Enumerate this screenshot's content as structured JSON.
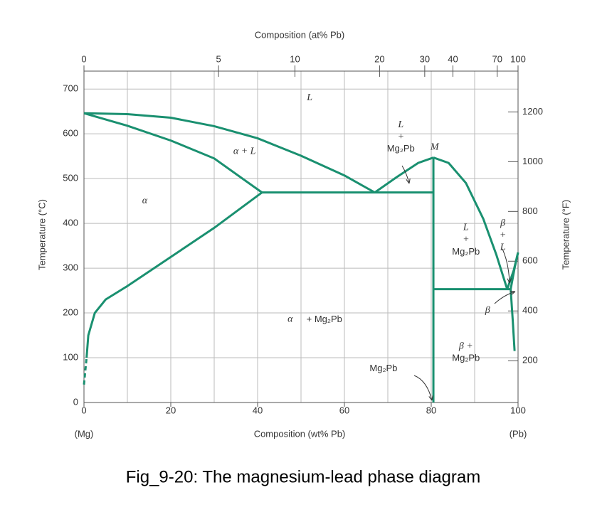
{
  "chart_data": {
    "type": "phase_diagram",
    "caption": "Fig_9-20: The magnesium-lead phase diagram",
    "xlabel": "Composition (wt% Pb)",
    "x2label": "Composition (at% Pb)",
    "ylabel": "Temperature (°C)",
    "y2label": "Temperature (°F)",
    "left_end": "(Mg)",
    "right_end": "(Pb)",
    "xlim": [
      0,
      100
    ],
    "ylim": [
      0,
      740
    ],
    "y2lim": [
      32,
      1364
    ],
    "xticks": [
      0,
      20,
      40,
      60,
      80,
      100
    ],
    "yticks": [
      0,
      100,
      200,
      300,
      400,
      500,
      600,
      700
    ],
    "y2ticks": [
      200,
      400,
      600,
      800,
      1000,
      1200
    ],
    "x2ticks": [
      {
        "value": 0,
        "label": "0"
      },
      {
        "value": 31.0,
        "label": "5"
      },
      {
        "value": 48.6,
        "label": "10"
      },
      {
        "value": 68.1,
        "label": "20"
      },
      {
        "value": 78.5,
        "label": "30"
      },
      {
        "value": 85.0,
        "label": "40"
      },
      {
        "value": 95.2,
        "label": "70"
      },
      {
        "value": 100,
        "label": "100"
      }
    ],
    "grid": true,
    "color": "#1a9070",
    "curves": [
      {
        "x": [
          0,
          10,
          20,
          30,
          40,
          50,
          60,
          67
        ],
        "y": [
          646,
          644,
          636,
          617,
          590,
          551,
          507,
          469
        ]
      },
      {
        "x": [
          0,
          10,
          20,
          30,
          41
        ],
        "y": [
          646,
          618,
          585,
          545,
          469
        ]
      },
      {
        "x": [
          0.6,
          1,
          2.5,
          5,
          10,
          20,
          30,
          41
        ],
        "y": [
          100,
          150,
          200,
          230,
          260,
          325,
          390,
          469
        ]
      },
      {
        "x": [
          0,
          0.6
        ],
        "y": [
          40,
          100
        ],
        "dashed": true
      },
      {
        "x": [
          41,
          80.5
        ],
        "y": [
          469,
          469
        ]
      },
      {
        "x": [
          67,
          72,
          77,
          80.5
        ],
        "y": [
          469,
          503,
          535,
          547
        ]
      },
      {
        "x": [
          80.5,
          84,
          88,
          92,
          95,
          97.5
        ],
        "y": [
          547,
          535,
          490,
          410,
          330,
          253
        ]
      },
      {
        "x": [
          80.5,
          80.5
        ],
        "y": [
          0,
          547
        ]
      },
      {
        "x": [
          80.5,
          98.3
        ],
        "y": [
          253,
          253
        ]
      },
      {
        "x": [
          97.5,
          99,
          100
        ],
        "y": [
          253,
          295,
          335
        ]
      },
      {
        "x": [
          100,
          99.2,
          98.3
        ],
        "y": [
          335,
          300,
          253
        ]
      },
      {
        "x": [
          98.3,
          98.8,
          99.2
        ],
        "y": [
          253,
          180,
          115
        ]
      }
    ],
    "labels": [
      [
        "L"
      ],
      [
        "α + L"
      ],
      [
        "α"
      ],
      [
        "L",
        "+",
        "Mg₂Pb"
      ],
      [
        "M"
      ],
      [
        "L",
        "+",
        "Mg₂Pb"
      ],
      [
        "β",
        "+",
        "L"
      ],
      [
        "β"
      ],
      [
        "α",
        "+ Mg₂Pb"
      ],
      [
        "β +",
        "Mg₂Pb"
      ],
      [
        "Mg₂Pb"
      ]
    ]
  }
}
